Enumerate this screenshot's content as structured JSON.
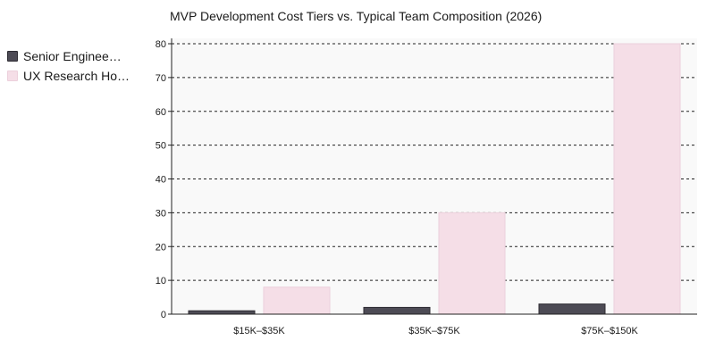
{
  "chart_data": {
    "type": "bar",
    "title": "MVP Development Cost Tiers vs. Typical Team Composition (2026)",
    "categories": [
      "$15K–$35K",
      "$35K–$75K",
      "$75K–$150K"
    ],
    "series": [
      {
        "name": "Senior Enginee…",
        "values": [
          1,
          2,
          3
        ],
        "color": "#4d4b55"
      },
      {
        "name": "UX Research Ho…",
        "values": [
          8,
          30,
          80
        ],
        "color": "#f5dee7"
      }
    ],
    "ylim": [
      0,
      80
    ],
    "yticks": [
      0,
      10,
      20,
      30,
      40,
      50,
      60,
      70,
      80
    ],
    "grid": true,
    "legend_position": "left"
  }
}
